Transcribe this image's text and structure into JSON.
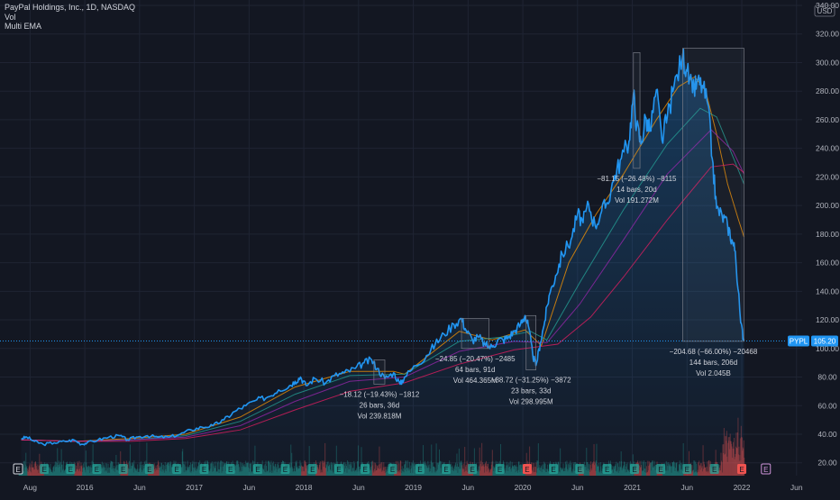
{
  "header": {
    "title": "PayPal Holdings, Inc., 1D, NASDAQ",
    "indicator_1": "Vol",
    "indicator_2": "Multi EMA"
  },
  "currency": "USD",
  "price_label": {
    "symbol": "PYPL",
    "value": "105.20"
  },
  "colors": {
    "background": "#131722",
    "price_line": "#2196f3",
    "area_fill": "#2196f3",
    "ema_20": "#ff9800",
    "ema_50": "#26a69a",
    "ema_100": "#9c27b0",
    "ema_200": "#e91e63",
    "volume_up": "#26a69a",
    "volume_down": "#ef5350",
    "axis_text": "#b2b5be",
    "grid": "#1f2433",
    "measure_text": "#d1d4dc",
    "measure_box": "#787b86",
    "earnings_badge_green": "#26a69a",
    "earnings_badge_red": "#ef5350"
  },
  "chart_data": {
    "type": "line",
    "y_axis_ticks": [
      "340.00",
      "320.00",
      "300.00",
      "280.00",
      "260.00",
      "240.00",
      "220.00",
      "200.00",
      "180.00",
      "160.00",
      "140.00",
      "120.00",
      "100.00",
      "80.00",
      "60.00",
      "40.00",
      "20.00"
    ],
    "x_axis_ticks": [
      "Aug",
      "2016",
      "Jun",
      "2017",
      "Jun",
      "2018",
      "Jun",
      "2019",
      "Jun",
      "2020",
      "Jun",
      "2021",
      "Jun",
      "2022",
      "Jun"
    ],
    "ylim": [
      11,
      340
    ],
    "xlim": [
      2015.47,
      2022.45
    ],
    "series": [
      {
        "key": "price",
        "values": [
          [
            2015.5,
            37
          ],
          [
            2015.55,
            38
          ],
          [
            2015.62,
            35
          ],
          [
            2015.7,
            33
          ],
          [
            2015.8,
            34
          ],
          [
            2015.9,
            35
          ],
          [
            2015.98,
            36
          ],
          [
            2016.05,
            33
          ],
          [
            2016.1,
            34
          ],
          [
            2016.2,
            36
          ],
          [
            2016.3,
            38
          ],
          [
            2016.4,
            39
          ],
          [
            2016.47,
            36
          ],
          [
            2016.55,
            38
          ],
          [
            2016.65,
            39
          ],
          [
            2016.75,
            38
          ],
          [
            2016.85,
            38
          ],
          [
            2016.95,
            40
          ],
          [
            2017.05,
            43
          ],
          [
            2017.15,
            45
          ],
          [
            2017.25,
            46
          ],
          [
            2017.35,
            50
          ],
          [
            2017.45,
            56
          ],
          [
            2017.55,
            60
          ],
          [
            2017.65,
            64
          ],
          [
            2017.75,
            66
          ],
          [
            2017.85,
            71
          ],
          [
            2017.95,
            74
          ],
          [
            2018.0,
            77
          ],
          [
            2018.05,
            80
          ],
          [
            2018.1,
            74
          ],
          [
            2018.18,
            79
          ],
          [
            2018.28,
            76
          ],
          [
            2018.36,
            81
          ],
          [
            2018.45,
            83
          ],
          [
            2018.55,
            86
          ],
          [
            2018.63,
            90
          ],
          [
            2018.7,
            92
          ],
          [
            2018.75,
            86
          ],
          [
            2018.82,
            79
          ],
          [
            2018.9,
            83
          ],
          [
            2018.96,
            75
          ],
          [
            2019.0,
            80
          ],
          [
            2019.1,
            88
          ],
          [
            2019.2,
            95
          ],
          [
            2019.28,
            103
          ],
          [
            2019.36,
            110
          ],
          [
            2019.45,
            117
          ],
          [
            2019.52,
            121
          ],
          [
            2019.56,
            113
          ],
          [
            2019.62,
            106
          ],
          [
            2019.68,
            108
          ],
          [
            2019.74,
            102
          ],
          [
            2019.8,
            101
          ],
          [
            2019.85,
            106
          ],
          [
            2019.9,
            106
          ],
          [
            2019.95,
            108
          ],
          [
            2020.0,
            112
          ],
          [
            2020.06,
            117
          ],
          [
            2020.1,
            123
          ],
          [
            2020.13,
            116
          ],
          [
            2020.17,
            96
          ],
          [
            2020.2,
            88
          ],
          [
            2020.24,
            104
          ],
          [
            2020.28,
            119
          ],
          [
            2020.32,
            137
          ],
          [
            2020.38,
            151
          ],
          [
            2020.44,
            166
          ],
          [
            2020.52,
            176
          ],
          [
            2020.58,
            194
          ],
          [
            2020.63,
            188
          ],
          [
            2020.68,
            201
          ],
          [
            2020.74,
            186
          ],
          [
            2020.8,
            196
          ],
          [
            2020.85,
            202
          ],
          [
            2020.92,
            221
          ],
          [
            2020.98,
            233
          ],
          [
            2021.05,
            245
          ],
          [
            2021.09,
            278
          ],
          [
            2021.12,
            256
          ],
          [
            2021.16,
            243
          ],
          [
            2021.2,
            262
          ],
          [
            2021.24,
            252
          ],
          [
            2021.3,
            281
          ],
          [
            2021.35,
            246
          ],
          [
            2021.4,
            262
          ],
          [
            2021.46,
            283
          ],
          [
            2021.54,
            305
          ],
          [
            2021.58,
            294
          ],
          [
            2021.63,
            279
          ],
          [
            2021.67,
            286
          ],
          [
            2021.72,
            284
          ],
          [
            2021.77,
            271
          ],
          [
            2021.81,
            233
          ],
          [
            2021.85,
            198
          ],
          [
            2021.9,
            193
          ],
          [
            2021.95,
            186
          ],
          [
            2021.99,
            176
          ],
          [
            2022.02,
            168
          ],
          [
            2022.07,
            118
          ],
          [
            2022.1,
            105.2
          ]
        ]
      },
      {
        "key": "ema_20",
        "values": [
          [
            2015.5,
            36
          ],
          [
            2016.0,
            35
          ],
          [
            2016.5,
            37
          ],
          [
            2017.0,
            40
          ],
          [
            2017.5,
            52
          ],
          [
            2018.0,
            73
          ],
          [
            2018.5,
            84
          ],
          [
            2018.9,
            84
          ],
          [
            2019.0,
            82
          ],
          [
            2019.5,
            112
          ],
          [
            2019.8,
            106
          ],
          [
            2020.1,
            113
          ],
          [
            2020.25,
            102
          ],
          [
            2020.5,
            160
          ],
          [
            2020.75,
            194
          ],
          [
            2021.0,
            222
          ],
          [
            2021.3,
            260
          ],
          [
            2021.5,
            283
          ],
          [
            2021.65,
            290
          ],
          [
            2021.75,
            280
          ],
          [
            2021.85,
            250
          ],
          [
            2021.95,
            215
          ],
          [
            2022.05,
            190
          ],
          [
            2022.1,
            178
          ]
        ]
      },
      {
        "key": "ema_50",
        "values": [
          [
            2015.5,
            36
          ],
          [
            2016.0,
            35
          ],
          [
            2016.5,
            36
          ],
          [
            2017.0,
            39
          ],
          [
            2017.5,
            49
          ],
          [
            2018.0,
            68
          ],
          [
            2018.5,
            81
          ],
          [
            2019.0,
            82
          ],
          [
            2019.5,
            105
          ],
          [
            2019.9,
            108
          ],
          [
            2020.15,
            112
          ],
          [
            2020.3,
            106
          ],
          [
            2020.6,
            146
          ],
          [
            2021.0,
            197
          ],
          [
            2021.4,
            243
          ],
          [
            2021.7,
            268
          ],
          [
            2021.85,
            262
          ],
          [
            2022.0,
            234
          ],
          [
            2022.1,
            215
          ]
        ]
      },
      {
        "key": "ema_100",
        "values": [
          [
            2015.5,
            36
          ],
          [
            2016.0,
            35
          ],
          [
            2016.5,
            36
          ],
          [
            2017.0,
            38
          ],
          [
            2017.5,
            46
          ],
          [
            2018.0,
            63
          ],
          [
            2018.5,
            77
          ],
          [
            2019.0,
            80
          ],
          [
            2019.5,
            98
          ],
          [
            2020.0,
            105
          ],
          [
            2020.3,
            104
          ],
          [
            2020.6,
            131
          ],
          [
            2021.0,
            176
          ],
          [
            2021.4,
            222
          ],
          [
            2021.8,
            253
          ],
          [
            2022.0,
            238
          ],
          [
            2022.1,
            222
          ]
        ]
      },
      {
        "key": "ema_200",
        "values": [
          [
            2015.5,
            36
          ],
          [
            2016.0,
            35
          ],
          [
            2016.5,
            35
          ],
          [
            2017.0,
            37
          ],
          [
            2017.5,
            43
          ],
          [
            2018.0,
            57
          ],
          [
            2018.5,
            70
          ],
          [
            2019.0,
            76
          ],
          [
            2019.5,
            89
          ],
          [
            2020.0,
            99
          ],
          [
            2020.4,
            103
          ],
          [
            2020.7,
            122
          ],
          [
            2021.0,
            150
          ],
          [
            2021.4,
            190
          ],
          [
            2021.8,
            227
          ],
          [
            2022.0,
            229
          ],
          [
            2022.1,
            223
          ]
        ]
      }
    ],
    "measurements": [
      {
        "line1": "−18.12 (−19.43%) −1812",
        "line2": "26 bars, 36d",
        "line3": "Vol 239.818M",
        "x0": 2018.72,
        "x1": 2018.82,
        "y0": 92,
        "y1": 75
      },
      {
        "line1": "−24.85 (−20.47%) −2485",
        "line2": "64 bars, 91d",
        "line3": "Vol 464.365M",
        "x0": 2019.52,
        "x1": 2019.77,
        "y0": 121,
        "y1": 100
      },
      {
        "line1": "−38.72 (−31.25%) −3872",
        "line2": "23 bars, 33d",
        "line3": "Vol 298.995M",
        "x0": 2020.11,
        "x1": 2020.2,
        "y0": 123,
        "y1": 85
      },
      {
        "line1": "−81.15 (−26.48%) −8115",
        "line2": "14 bars, 20d",
        "line3": "Vol 191.272M",
        "x0": 2021.09,
        "x1": 2021.15,
        "y0": 307,
        "y1": 226
      },
      {
        "line1": "−204.68 (−66.00%) −20468",
        "line2": "144 bars, 206d",
        "line3": "Vol 2.045B",
        "x0": 2021.54,
        "x1": 2022.1,
        "y0": 310,
        "y1": 105
      }
    ],
    "earnings_marker": "E",
    "earnings_markers": [
      {
        "x": 2015.47,
        "status": "outline"
      },
      {
        "x": 2015.71,
        "status": "green"
      },
      {
        "x": 2015.95,
        "status": "green"
      },
      {
        "x": 2016.19,
        "status": "green"
      },
      {
        "x": 2016.43,
        "status": "green"
      },
      {
        "x": 2016.67,
        "status": "green"
      },
      {
        "x": 2016.92,
        "status": "green"
      },
      {
        "x": 2017.17,
        "status": "green"
      },
      {
        "x": 2017.41,
        "status": "green"
      },
      {
        "x": 2017.66,
        "status": "green"
      },
      {
        "x": 2017.91,
        "status": "green"
      },
      {
        "x": 2018.16,
        "status": "green"
      },
      {
        "x": 2018.4,
        "status": "green"
      },
      {
        "x": 2018.64,
        "status": "green"
      },
      {
        "x": 2018.89,
        "status": "green"
      },
      {
        "x": 2019.14,
        "status": "green"
      },
      {
        "x": 2019.38,
        "status": "green"
      },
      {
        "x": 2019.62,
        "status": "green"
      },
      {
        "x": 2019.87,
        "status": "green"
      },
      {
        "x": 2020.12,
        "status": "red"
      },
      {
        "x": 2020.36,
        "status": "green"
      },
      {
        "x": 2020.6,
        "status": "green"
      },
      {
        "x": 2020.85,
        "status": "green"
      },
      {
        "x": 2021.1,
        "status": "green"
      },
      {
        "x": 2021.34,
        "status": "green"
      },
      {
        "x": 2021.58,
        "status": "green"
      },
      {
        "x": 2021.83,
        "status": "green"
      },
      {
        "x": 2022.08,
        "status": "red"
      },
      {
        "x": 2022.3,
        "status": "outline_purple"
      }
    ]
  }
}
